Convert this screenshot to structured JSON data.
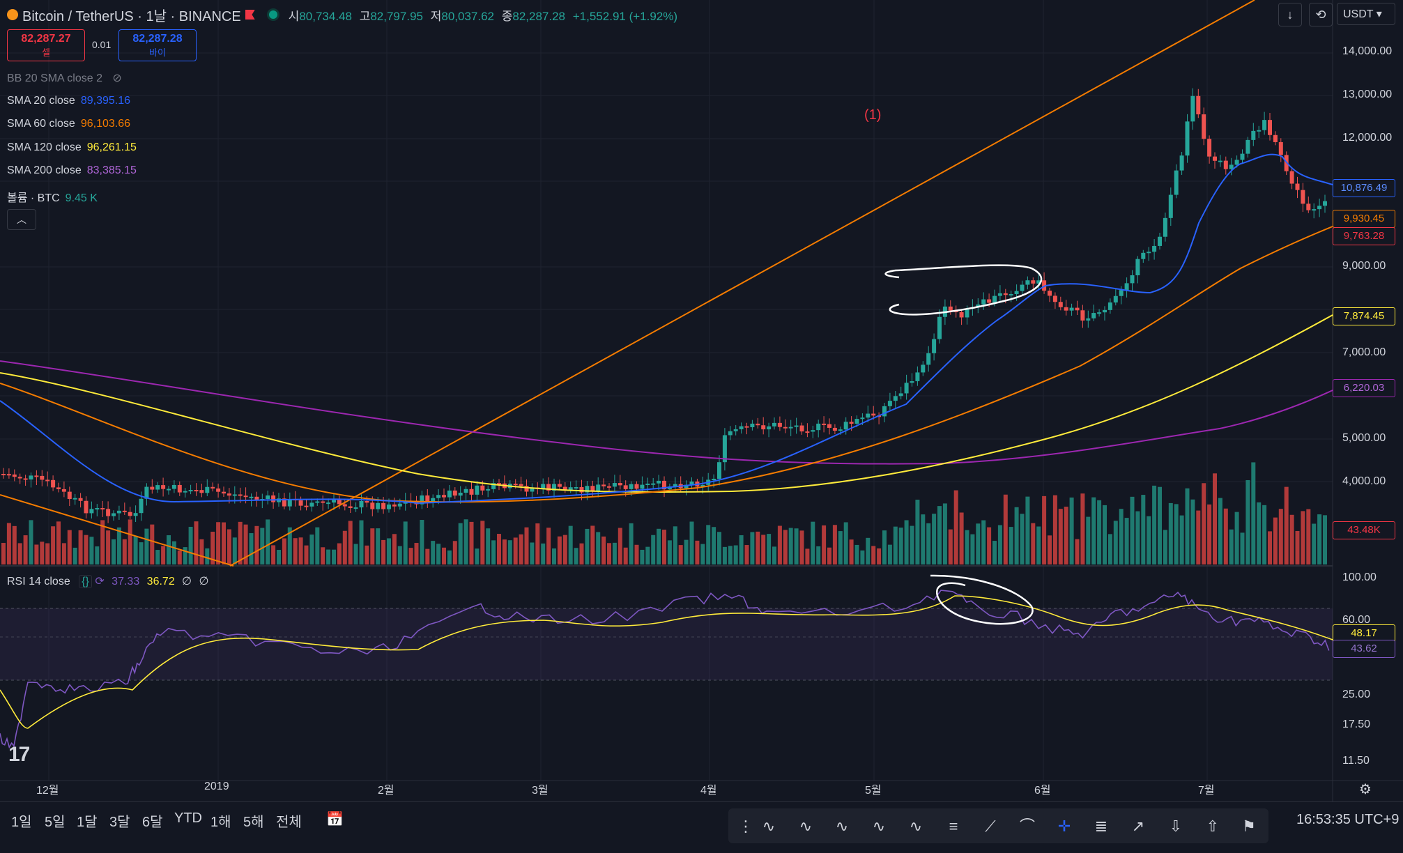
{
  "header": {
    "symbol": "Bitcoin / TetherUS · 1날 · BINANCE",
    "ohlc": [
      {
        "k": "시",
        "v": "80,734.48"
      },
      {
        "k": "고",
        "v": "82,797.95"
      },
      {
        "k": "저",
        "v": "80,037.62"
      },
      {
        "k": "종",
        "v": "82,287.28"
      }
    ],
    "change": "+1,552.91 (+1.92%)"
  },
  "trade": {
    "sell_price": "82,287.27",
    "sell_label": "셀",
    "spread": "0.01",
    "buy_price": "82,287.28",
    "buy_label": "바이"
  },
  "indicators": [
    {
      "name": "BB 20 SMA close 2",
      "value": "",
      "color": "#787b86"
    },
    {
      "name": "SMA 20 close",
      "value": "89,395.16",
      "color": "#2962ff"
    },
    {
      "name": "SMA 60 close",
      "value": "96,103.66",
      "color": "#f57c00"
    },
    {
      "name": "SMA 120 close",
      "value": "96,261.15",
      "color": "#ffeb3b"
    },
    {
      "name": "SMA 200 close",
      "value": "83,385.15",
      "color": "#9c27b0"
    },
    {
      "name": "볼륨 · BTC",
      "value": "9.45 K",
      "color": "#26a69a"
    }
  ],
  "annotation": "(1)",
  "price_axis": [
    "14,000.00",
    "13,000.00",
    "12,000.00",
    "9,000.00",
    "7,000.00",
    "5,000.00",
    "4,000.00"
  ],
  "price_tags": [
    {
      "text": "10,876.49",
      "color": "#2962ff"
    },
    {
      "text": "9,930.45",
      "color": "#f57c00"
    },
    {
      "text": "9,763.28",
      "color": "#f23645"
    },
    {
      "text": "7,874.45",
      "color": "#ffeb3b"
    },
    {
      "text": "6,220.03",
      "color": "#9c27b0"
    },
    {
      "text": "43.48K",
      "color": "#f23645"
    }
  ],
  "rsi": {
    "label": "RSI 14 close",
    "val1": "37.33",
    "val2": "36.72",
    "val3": "∅",
    "val4": "∅",
    "axis": [
      "100.00",
      "60.00",
      "25.00",
      "17.50",
      "11.50"
    ],
    "tag1": "48.17",
    "tag2": "43.62"
  },
  "time_axis": [
    "12월",
    "2019",
    "2월",
    "3월",
    "4월",
    "5월",
    "6월",
    "7월"
  ],
  "currency": "USDT",
  "ranges": [
    "1일",
    "5일",
    "1달",
    "3달",
    "6달",
    "YTD",
    "1해",
    "5해",
    "전체"
  ],
  "clock": "16:53:35 UTC+9",
  "logo": "17"
}
